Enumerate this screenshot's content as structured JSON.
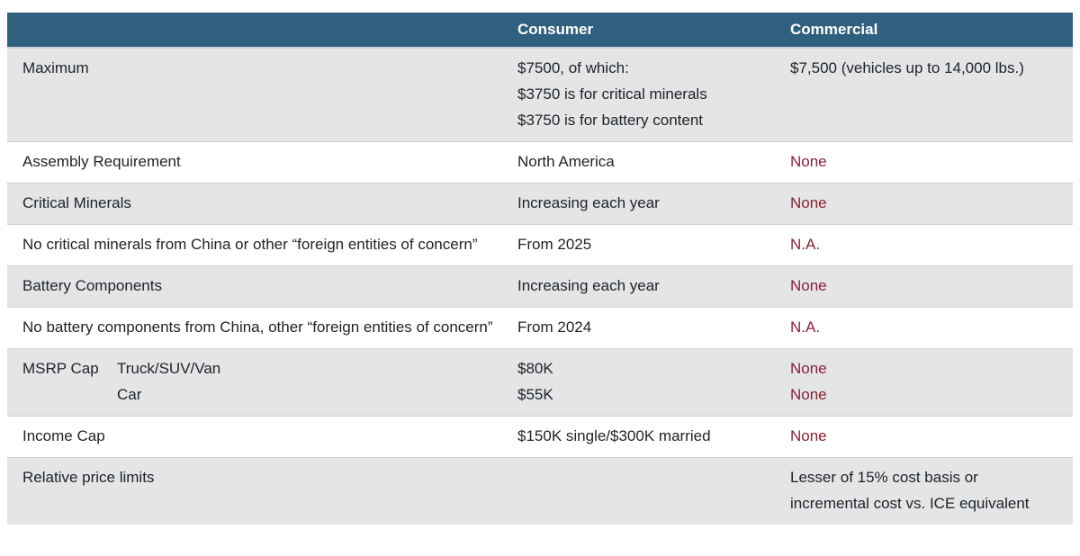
{
  "colors": {
    "header_bg": "#2f607e",
    "header_text": "#ffffff",
    "alt_row_bg": "#e3e5e7",
    "body_text": "#212427",
    "accent_red": "#8b2034"
  },
  "table": {
    "columns": [
      "",
      "Consumer",
      "Commercial"
    ],
    "rows": [
      {
        "label": "Maximum",
        "consumer": [
          "$7500, of which:",
          "$3750 is for critical minerals",
          "$3750 is for battery content"
        ],
        "commercial": [
          "$7,500 (vehicles up to 14,000 lbs.)"
        ]
      },
      {
        "label": "Assembly Requirement",
        "consumer": [
          "North America"
        ],
        "commercial": [
          "None"
        ]
      },
      {
        "label": "Critical Minerals",
        "consumer": [
          "Increasing each year"
        ],
        "commercial": [
          "None"
        ]
      },
      {
        "label": "No critical minerals from China or other “foreign entities of concern”",
        "consumer": [
          "From 2025"
        ],
        "commercial": [
          "N.A."
        ]
      },
      {
        "label": "Battery Components",
        "consumer": [
          "Increasing each year"
        ],
        "commercial": [
          "None"
        ]
      },
      {
        "label": "No battery components from China, other “foreign entities of concern”",
        "consumer": [
          "From 2024"
        ],
        "commercial": [
          "N.A."
        ]
      },
      {
        "label": "MSRP Cap",
        "sublabels": [
          "Truck/SUV/Van",
          "Car"
        ],
        "consumer": [
          "$80K",
          "$55K"
        ],
        "commercial": [
          "None",
          "None"
        ]
      },
      {
        "label": "Income Cap",
        "consumer": [
          "$150K single/$300K married"
        ],
        "commercial": [
          "None"
        ]
      },
      {
        "label": "Relative price limits",
        "consumer": [],
        "commercial": [
          "Lesser of 15% cost basis or",
          "incremental cost vs. ICE equivalent"
        ]
      }
    ]
  }
}
